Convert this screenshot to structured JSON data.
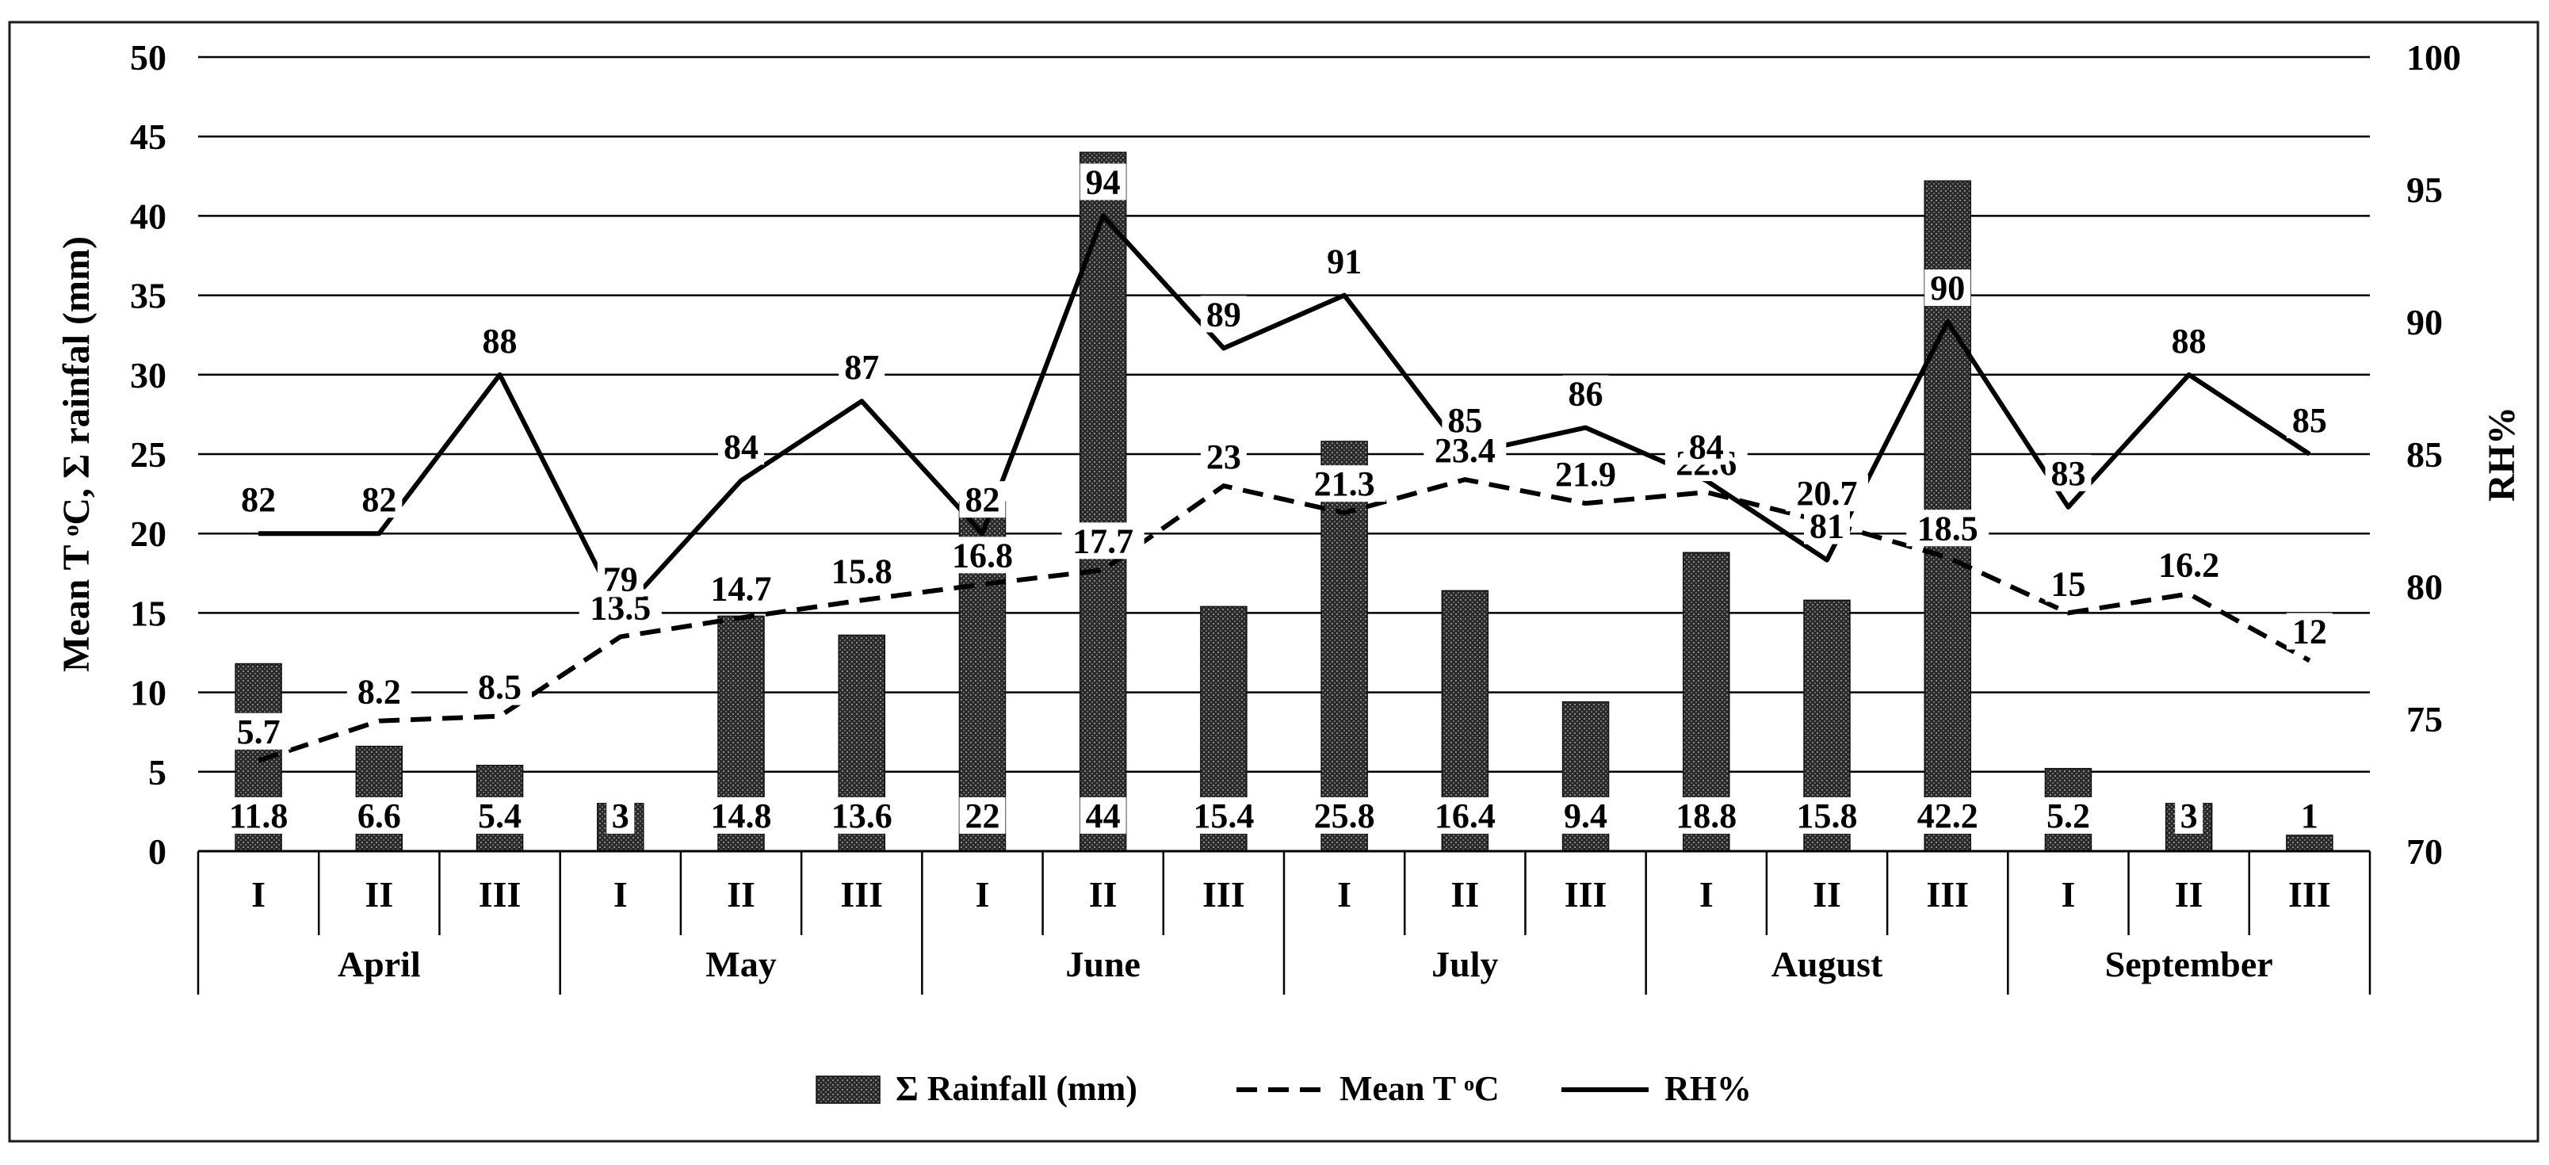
{
  "chart_data": {
    "type": "bar+line",
    "categories": [
      "I",
      "II",
      "III",
      "I",
      "II",
      "III",
      "I",
      "II",
      "III",
      "I",
      "II",
      "III",
      "I",
      "II",
      "III",
      "I",
      "II",
      "III"
    ],
    "months": [
      "April",
      "May",
      "June",
      "July",
      "August",
      "September"
    ],
    "series": [
      {
        "name": "Σ Rainfall (mm)",
        "type": "bar",
        "axis": "left",
        "values": [
          11.8,
          6.6,
          5.4,
          3,
          14.8,
          13.6,
          22,
          44,
          15.4,
          25.8,
          16.4,
          9.4,
          18.8,
          15.8,
          42.2,
          5.2,
          3,
          1
        ]
      },
      {
        "name": "Mean T ᵒC",
        "type": "line",
        "style": "dashed",
        "axis": "left",
        "values": [
          5.7,
          8.2,
          8.5,
          13.5,
          14.7,
          15.8,
          16.8,
          17.7,
          23,
          21.3,
          23.4,
          21.9,
          22.6,
          20.7,
          18.5,
          15,
          16.2,
          12
        ]
      },
      {
        "name": "RH%",
        "type": "line",
        "style": "solid",
        "axis": "right",
        "values": [
          82,
          82,
          88,
          79,
          84,
          87,
          82,
          94,
          89,
          91,
          85,
          86,
          84,
          81,
          90,
          83,
          88,
          85
        ]
      }
    ],
    "ylabel": "Mean T ᵒC,  Σ rainfal (mm)",
    "y2label": "RH%",
    "ylim": [
      0,
      50
    ],
    "y2lim": [
      70,
      100
    ],
    "yticks": [
      "0",
      "5",
      "10",
      "15",
      "20",
      "25",
      "30",
      "35",
      "40",
      "45",
      "50"
    ],
    "y2ticks": [
      "70",
      "75",
      "80",
      "85",
      "90",
      "95",
      "100"
    ],
    "grid": true,
    "legend_position": "bottom"
  }
}
